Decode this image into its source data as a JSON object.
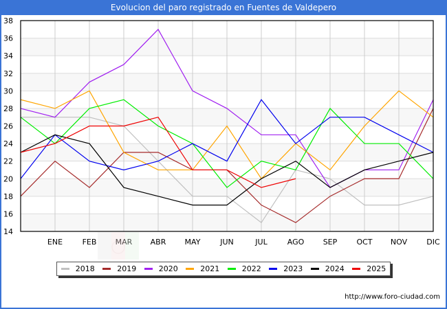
{
  "header": {
    "title": "Evolucion del paro registrado en Fuentes de Valdepero"
  },
  "footer": {
    "url": "http://www.foro-ciudad.com"
  },
  "legend": [
    {
      "label": "2018",
      "color": "#c0c0c0"
    },
    {
      "label": "2019",
      "color": "#a52a2a"
    },
    {
      "label": "2020",
      "color": "#a020f0"
    },
    {
      "label": "2021",
      "color": "#ffa500"
    },
    {
      "label": "2022",
      "color": "#00ee00"
    },
    {
      "label": "2023",
      "color": "#0000ee"
    },
    {
      "label": "2024",
      "color": "#000000"
    },
    {
      "label": "2025",
      "color": "#ee0000"
    }
  ],
  "chart_data": {
    "type": "line",
    "title": "Evolucion del paro registrado en Fuentes de Valdepero",
    "xlabel": "",
    "ylabel": "",
    "ylim": [
      14,
      38
    ],
    "yticks": [
      14,
      16,
      18,
      20,
      22,
      24,
      26,
      28,
      30,
      32,
      34,
      36,
      38
    ],
    "categories": [
      "",
      "ENE",
      "FEB",
      "MAR",
      "ABR",
      "MAY",
      "JUN",
      "JUL",
      "AGO",
      "SEP",
      "OCT",
      "NOV",
      "DIC"
    ],
    "grid": true,
    "legend_position": "bottom",
    "series": [
      {
        "name": "2018",
        "color": "#c0c0c0",
        "values": [
          27,
          27,
          27,
          26,
          22,
          18,
          18,
          15,
          21,
          20,
          17,
          17,
          18
        ]
      },
      {
        "name": "2019",
        "color": "#a52a2a",
        "values": [
          18,
          22,
          19,
          23,
          23,
          21,
          21,
          17,
          15,
          18,
          20,
          20,
          28
        ]
      },
      {
        "name": "2020",
        "color": "#a020f0",
        "values": [
          28,
          27,
          31,
          33,
          37,
          30,
          28,
          25,
          25,
          19,
          21,
          21,
          29
        ]
      },
      {
        "name": "2021",
        "color": "#ffa500",
        "values": [
          29,
          28,
          30,
          23,
          21,
          21,
          26,
          20,
          24,
          21,
          26,
          30,
          27
        ]
      },
      {
        "name": "2022",
        "color": "#00ee00",
        "values": [
          27,
          24,
          28,
          29,
          26,
          24,
          19,
          22,
          21,
          28,
          24,
          24,
          20
        ]
      },
      {
        "name": "2023",
        "color": "#0000ee",
        "values": [
          20,
          25,
          22,
          21,
          22,
          24,
          22,
          29,
          24,
          27,
          27,
          25,
          23
        ]
      },
      {
        "name": "2024",
        "color": "#000000",
        "values": [
          23,
          25,
          24,
          19,
          18,
          17,
          17,
          20,
          22,
          19,
          21,
          22,
          23
        ]
      },
      {
        "name": "2025",
        "color": "#ee0000",
        "values": [
          23,
          24,
          26,
          26,
          27,
          21,
          21,
          19,
          20
        ]
      }
    ]
  }
}
